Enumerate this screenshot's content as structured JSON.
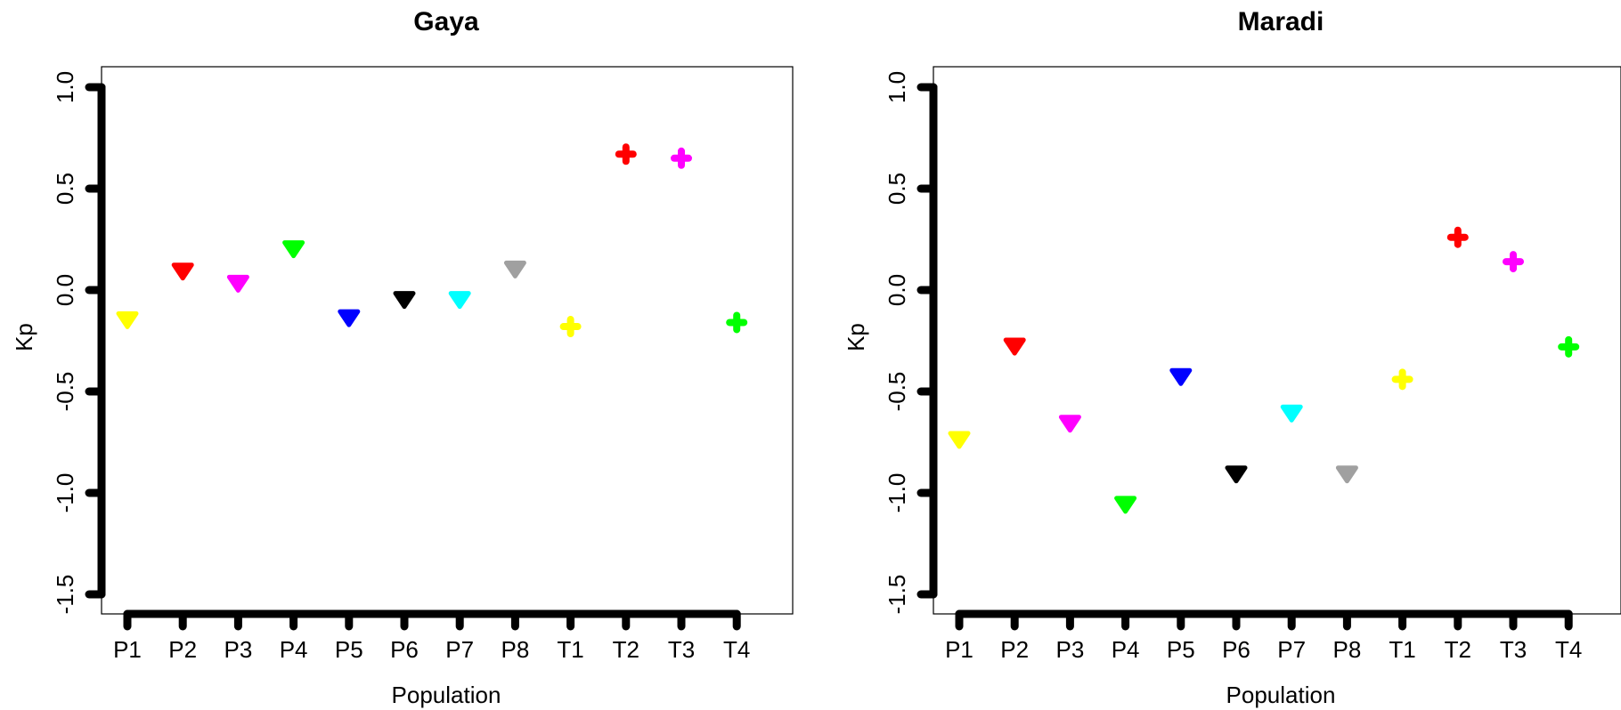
{
  "chart_data": [
    {
      "type": "scatter",
      "title": "Gaya",
      "xlabel": "Population",
      "ylabel": "Kp",
      "ylim": [
        -1.5,
        1.0
      ],
      "yticks": [
        "1.0",
        "0.5",
        "0.0",
        "-0.5",
        "-1.0",
        "-1.5"
      ],
      "categories": [
        "P1",
        "P2",
        "P3",
        "P4",
        "P5",
        "P6",
        "P7",
        "P8",
        "T1",
        "T2",
        "T3",
        "T4"
      ],
      "points": [
        {
          "x": "P1",
          "y": -0.14,
          "color": "#FFFF00",
          "marker": "triangle-down"
        },
        {
          "x": "P2",
          "y": 0.1,
          "color": "#FF0000",
          "marker": "triangle-down"
        },
        {
          "x": "P3",
          "y": 0.04,
          "color": "#FF00FF",
          "marker": "triangle-down"
        },
        {
          "x": "P4",
          "y": 0.21,
          "color": "#00FF00",
          "marker": "triangle-down"
        },
        {
          "x": "P5",
          "y": -0.13,
          "color": "#0000FF",
          "marker": "triangle-down"
        },
        {
          "x": "P6",
          "y": -0.04,
          "color": "#000000",
          "marker": "triangle-down"
        },
        {
          "x": "P7",
          "y": -0.04,
          "color": "#00FFFF",
          "marker": "triangle-down"
        },
        {
          "x": "P8",
          "y": 0.11,
          "color": "#A0A0A0",
          "marker": "triangle-down"
        },
        {
          "x": "T1",
          "y": -0.18,
          "color": "#FFFF00",
          "marker": "cross"
        },
        {
          "x": "T2",
          "y": 0.67,
          "color": "#FF0000",
          "marker": "cross"
        },
        {
          "x": "T3",
          "y": 0.65,
          "color": "#FF00FF",
          "marker": "cross"
        },
        {
          "x": "T4",
          "y": -0.16,
          "color": "#00FF00",
          "marker": "cross"
        }
      ]
    },
    {
      "type": "scatter",
      "title": "Maradi",
      "xlabel": "Population",
      "ylabel": "Kp",
      "ylim": [
        -1.5,
        1.0
      ],
      "yticks": [
        "1.0",
        "0.5",
        "0.0",
        "-0.5",
        "-1.0",
        "-1.5"
      ],
      "categories": [
        "P1",
        "P2",
        "P3",
        "P4",
        "P5",
        "P6",
        "P7",
        "P8",
        "T1",
        "T2",
        "T3",
        "T4"
      ],
      "points": [
        {
          "x": "P1",
          "y": -0.73,
          "color": "#FFFF00",
          "marker": "triangle-down"
        },
        {
          "x": "P2",
          "y": -0.27,
          "color": "#FF0000",
          "marker": "triangle-down"
        },
        {
          "x": "P3",
          "y": -0.65,
          "color": "#FF00FF",
          "marker": "triangle-down"
        },
        {
          "x": "P4",
          "y": -1.05,
          "color": "#00FF00",
          "marker": "triangle-down"
        },
        {
          "x": "P5",
          "y": -0.42,
          "color": "#0000FF",
          "marker": "triangle-down"
        },
        {
          "x": "P6",
          "y": -0.9,
          "color": "#000000",
          "marker": "triangle-down"
        },
        {
          "x": "P7",
          "y": -0.6,
          "color": "#00FFFF",
          "marker": "triangle-down"
        },
        {
          "x": "P8",
          "y": -0.9,
          "color": "#A0A0A0",
          "marker": "triangle-down"
        },
        {
          "x": "T1",
          "y": -0.44,
          "color": "#FFFF00",
          "marker": "cross"
        },
        {
          "x": "T2",
          "y": 0.26,
          "color": "#FF0000",
          "marker": "cross"
        },
        {
          "x": "T3",
          "y": 0.14,
          "color": "#FF00FF",
          "marker": "cross"
        },
        {
          "x": "T4",
          "y": -0.28,
          "color": "#00FF00",
          "marker": "cross"
        }
      ]
    }
  ]
}
